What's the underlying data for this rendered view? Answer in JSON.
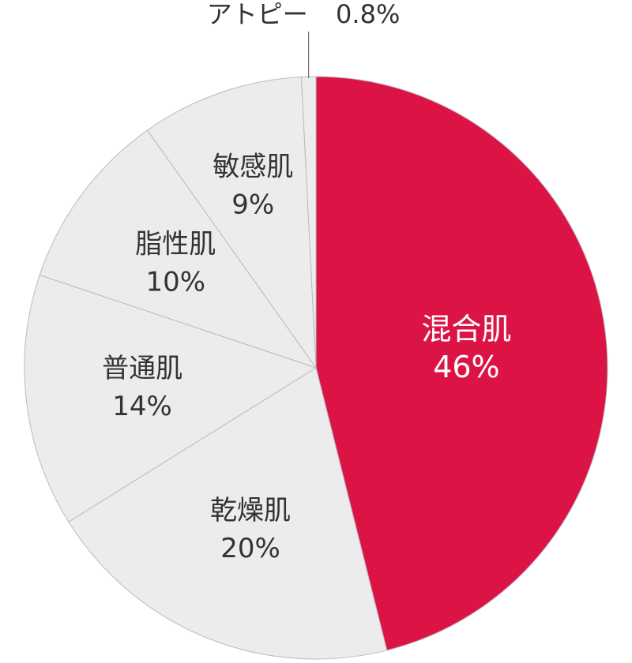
{
  "chart_data": {
    "type": "pie",
    "categories": [
      "混合肌",
      "乾燥肌",
      "普通肌",
      "脂性肌",
      "敏感肌",
      "アトピー"
    ],
    "values": [
      46,
      20,
      14,
      10,
      9,
      0.8
    ],
    "value_labels": [
      "46%",
      "20%",
      "14%",
      "10%",
      "9%",
      "0.8%"
    ],
    "colors": [
      "#dc1446",
      "#ececec",
      "#ececec",
      "#ececec",
      "#ececec",
      "#ececec"
    ]
  }
}
